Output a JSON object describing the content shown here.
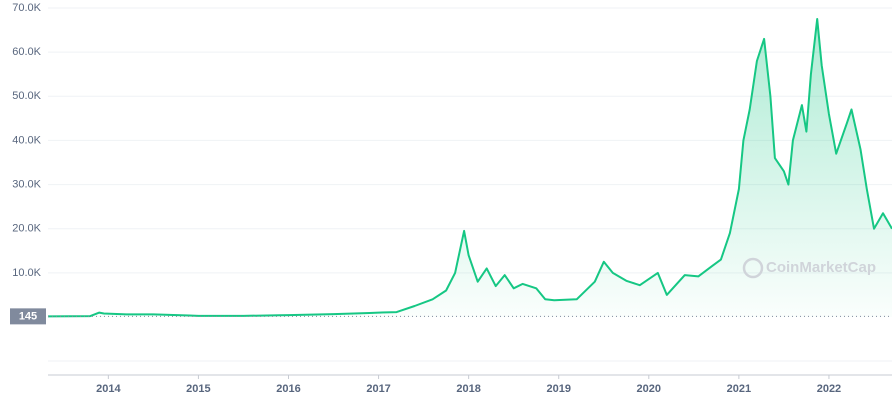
{
  "chart_data": {
    "type": "line",
    "x": [
      2013.33,
      2013.8,
      2013.9,
      2013.95,
      2014.2,
      2014.5,
      2014.9,
      2015.0,
      2015.5,
      2015.9,
      2016.0,
      2016.5,
      2016.9,
      2017.0,
      2017.2,
      2017.4,
      2017.6,
      2017.75,
      2017.85,
      2017.95,
      2018.0,
      2018.1,
      2018.2,
      2018.3,
      2018.4,
      2018.5,
      2018.6,
      2018.75,
      2018.85,
      2018.95,
      2019.2,
      2019.4,
      2019.5,
      2019.6,
      2019.75,
      2019.9,
      2020.1,
      2020.2,
      2020.4,
      2020.55,
      2020.7,
      2020.8,
      2020.9,
      2021.0,
      2021.05,
      2021.12,
      2021.2,
      2021.28,
      2021.35,
      2021.4,
      2021.5,
      2021.55,
      2021.6,
      2021.7,
      2021.75,
      2021.8,
      2021.87,
      2021.92,
      2022.0,
      2022.08,
      2022.2,
      2022.25,
      2022.35,
      2022.42,
      2022.5,
      2022.6,
      2022.7
    ],
    "series": [
      {
        "color": "#16c784",
        "values": [
          130,
          200,
          1000,
          800,
          600,
          600,
          350,
          250,
          250,
          400,
          430,
          650,
          900,
          1000,
          1100,
          2500,
          4000,
          6000,
          10000,
          19500,
          14000,
          8000,
          11000,
          7000,
          9500,
          6500,
          7500,
          6500,
          4000,
          3800,
          4000,
          8000,
          12500,
          10000,
          8200,
          7200,
          10000,
          5000,
          9500,
          9200,
          11500,
          13000,
          19000,
          29000,
          40000,
          47000,
          58000,
          63000,
          50000,
          36000,
          33000,
          30000,
          40000,
          48000,
          42000,
          55000,
          67500,
          57000,
          46000,
          37000,
          44000,
          47000,
          38000,
          29000,
          20000,
          23500,
          20000
        ]
      }
    ],
    "xlim": [
      2013.33,
      2022.7
    ],
    "xticks": [
      2014,
      2015,
      2016,
      2017,
      2018,
      2019,
      2020,
      2021,
      2022
    ],
    "ylim": [
      0,
      70000
    ],
    "yticks": [
      {
        "value": 10000,
        "label": "10.0K"
      },
      {
        "value": 20000,
        "label": "20.0K"
      },
      {
        "value": 30000,
        "label": "30.0K"
      },
      {
        "value": 40000,
        "label": "40.0K"
      },
      {
        "value": 50000,
        "label": "50.0K"
      },
      {
        "value": 60000,
        "label": "60.0K"
      },
      {
        "value": 70000,
        "label": "70.0K"
      }
    ],
    "reference": 145,
    "grid": true,
    "watermark": "CoinMarketCap"
  }
}
